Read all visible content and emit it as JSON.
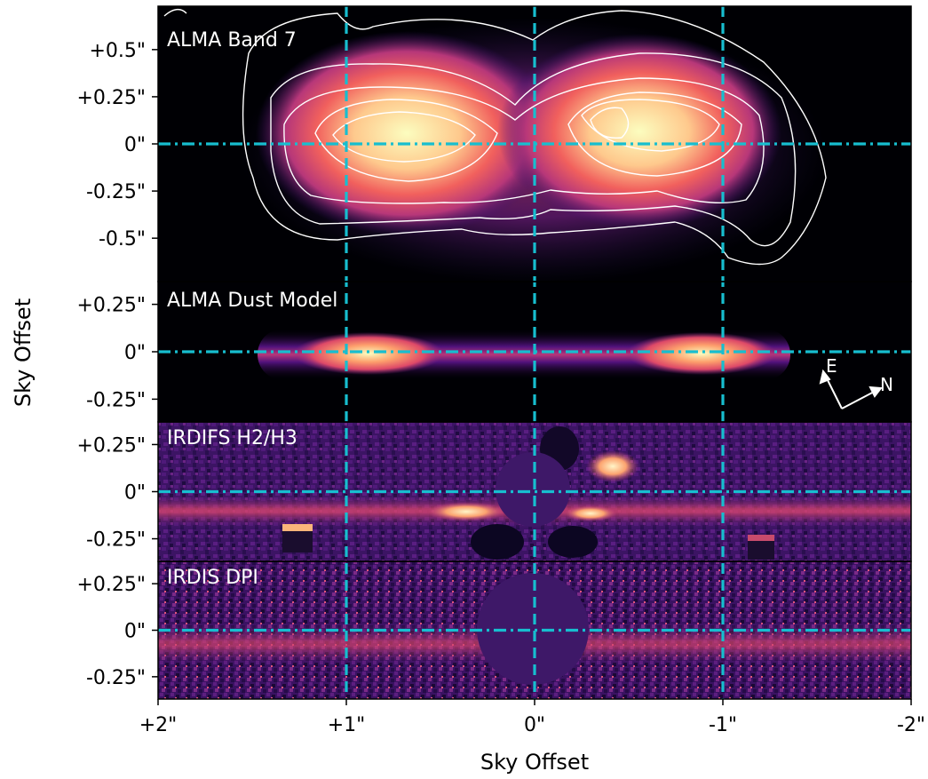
{
  "colors": {
    "guide_line": "#17becf",
    "contour": "#ffffff",
    "background": "#000004",
    "magma_low": "#000004",
    "magma_mid": "#b73779",
    "magma_high": "#fcfdbf"
  },
  "chart_data": {
    "type": "heatmap",
    "xlabel": "Sky Offset",
    "ylabel": "Sky Offset",
    "xlim": [
      2,
      -2
    ],
    "x_ticks": [
      {
        "value": 2,
        "label": "+2\""
      },
      {
        "value": 1,
        "label": "+1\""
      },
      {
        "value": 0,
        "label": "0\""
      },
      {
        "value": -1,
        "label": "-1\""
      },
      {
        "value": -2,
        "label": "-2\""
      }
    ],
    "vertical_guides_x": [
      1,
      0,
      -1
    ],
    "horizontal_guide_y": 0,
    "panels": [
      {
        "title": "ALMA Band 7",
        "ylim": [
          -0.73,
          0.73
        ],
        "y_ticks": [
          {
            "value": 0.5,
            "label": "+0.5\""
          },
          {
            "value": 0.25,
            "label": "+0.25\""
          },
          {
            "value": 0,
            "label": "0\""
          },
          {
            "value": -0.25,
            "label": "-0.25\""
          },
          {
            "value": -0.5,
            "label": "-0.5\""
          }
        ],
        "contours": true
      },
      {
        "title": "ALMA Dust Model",
        "ylim": [
          -0.37,
          0.37
        ],
        "y_ticks": [
          {
            "value": 0.25,
            "label": "+0.25\""
          },
          {
            "value": 0,
            "label": "0\""
          },
          {
            "value": -0.25,
            "label": "-0.25\""
          }
        ],
        "compass": {
          "east_label": "E",
          "north_label": "N"
        }
      },
      {
        "title": "IRDIFS H2/H3",
        "ylim": [
          -0.37,
          0.37
        ],
        "y_ticks": [
          {
            "value": 0.25,
            "label": "+0.25\""
          },
          {
            "value": 0,
            "label": "0\""
          },
          {
            "value": -0.25,
            "label": "-0.25\""
          }
        ],
        "mask": true
      },
      {
        "title": "IRDIS DPI",
        "ylim": [
          -0.37,
          0.37
        ],
        "y_ticks": [
          {
            "value": 0.25,
            "label": "+0.25\""
          },
          {
            "value": 0,
            "label": "0\""
          },
          {
            "value": -0.25,
            "label": "-0.25\""
          }
        ],
        "mask": true
      }
    ]
  }
}
